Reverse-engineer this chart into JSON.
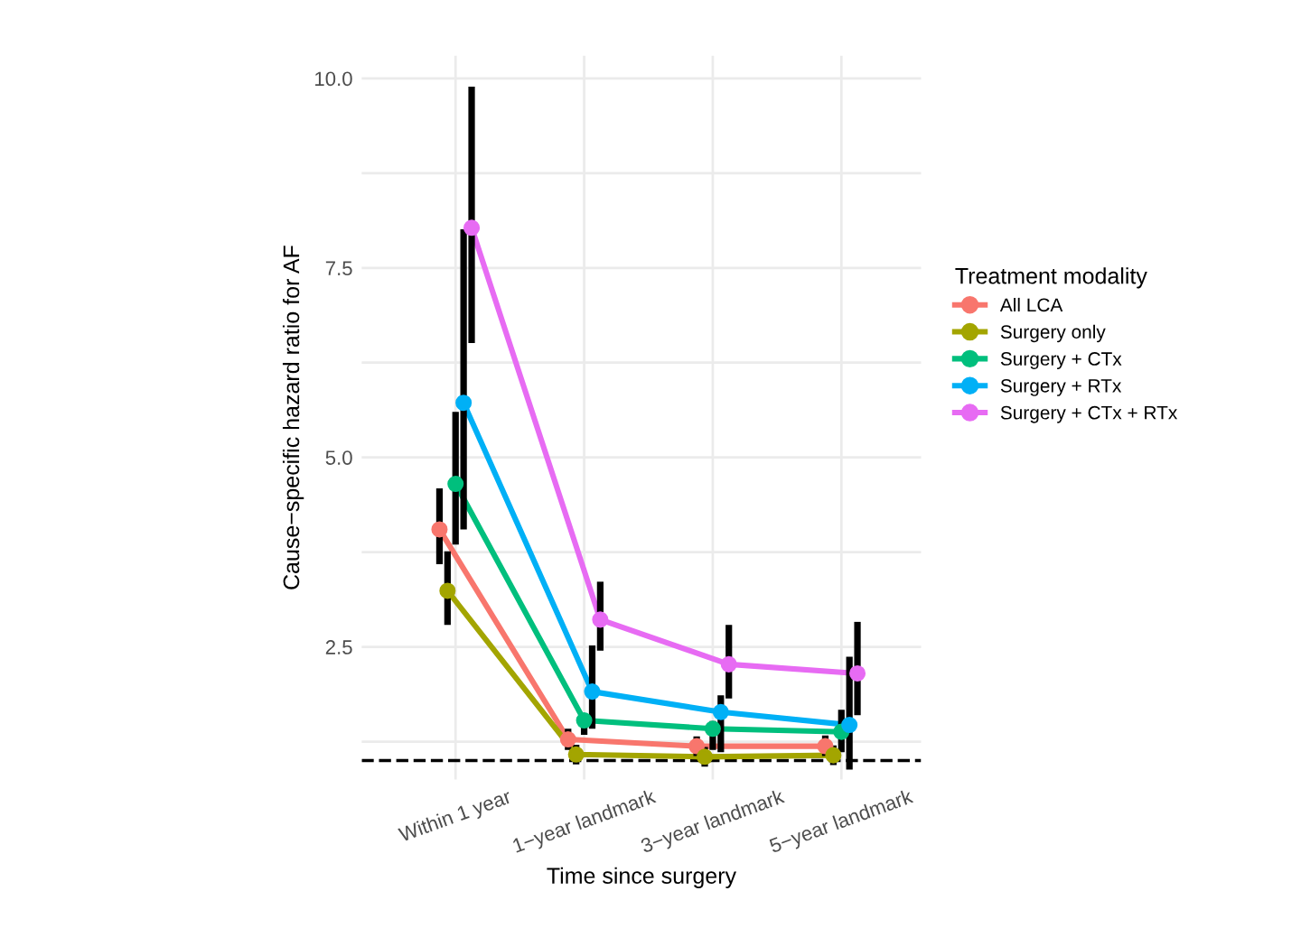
{
  "chart_data": {
    "type": "line",
    "xlabel": "Time since surgery",
    "ylabel": "Cause−specific hazard ratio for AF",
    "legend_title": "Treatment modality",
    "categories": [
      "Within 1 year",
      "1−year landmark",
      "3−year landmark",
      "5−year landmark"
    ],
    "ylim": [
      0.75,
      10.3
    ],
    "yticks": [
      {
        "value": 1.25,
        "label": null
      },
      2.5,
      {
        "value": 3.75,
        "label": null
      },
      {
        "value": 5,
        "label": "5.0"
      },
      {
        "value": 6.25,
        "label": null
      },
      7.5,
      {
        "value": 8.75,
        "label": null
      },
      {
        "value": 10,
        "label": "10.0"
      }
    ],
    "grid": true,
    "legend": "right",
    "marker": "circle",
    "line_style": "solid",
    "ref_lines": [
      {
        "axis": "y",
        "value": 1.0,
        "color": "#000000",
        "line_style": "dashed"
      }
    ],
    "series": [
      {
        "name": "All LCA",
        "color": "#f8766d",
        "values": [
          4.05,
          1.28,
          1.19,
          1.19
        ],
        "errors": [
          [
            3.59,
            4.59
          ],
          [
            1.14,
            1.42
          ],
          [
            1.06,
            1.32
          ],
          [
            1.06,
            1.33
          ]
        ]
      },
      {
        "name": "Surgery only",
        "color": "#a3a500",
        "values": [
          3.24,
          1.08,
          1.05,
          1.07
        ],
        "errors": [
          [
            2.79,
            3.76
          ],
          [
            0.95,
            1.21
          ],
          [
            0.92,
            1.18
          ],
          [
            0.94,
            1.2
          ]
        ]
      },
      {
        "name": "Surgery + CTx",
        "color": "#00bf7d",
        "values": [
          4.65,
          1.53,
          1.42,
          1.38
        ],
        "errors": [
          [
            3.85,
            5.6
          ],
          [
            1.34,
            1.61
          ],
          [
            1.14,
            1.52
          ],
          [
            1.11,
            1.67
          ]
        ]
      },
      {
        "name": "Surgery + RTx",
        "color": "#00b0f6",
        "values": [
          5.72,
          1.91,
          1.64,
          1.47
        ],
        "errors": [
          [
            4.05,
            8.01
          ],
          [
            1.42,
            2.52
          ],
          [
            1.11,
            1.86
          ],
          [
            0.88,
            2.37
          ]
        ]
      },
      {
        "name": "Surgery + CTx + RTx",
        "color": "#e76bf3",
        "values": [
          8.03,
          2.86,
          2.27,
          2.15
        ],
        "errors": [
          [
            6.51,
            9.89
          ],
          [
            2.45,
            3.36
          ],
          [
            1.82,
            2.79
          ],
          [
            1.6,
            2.83
          ]
        ]
      }
    ]
  }
}
